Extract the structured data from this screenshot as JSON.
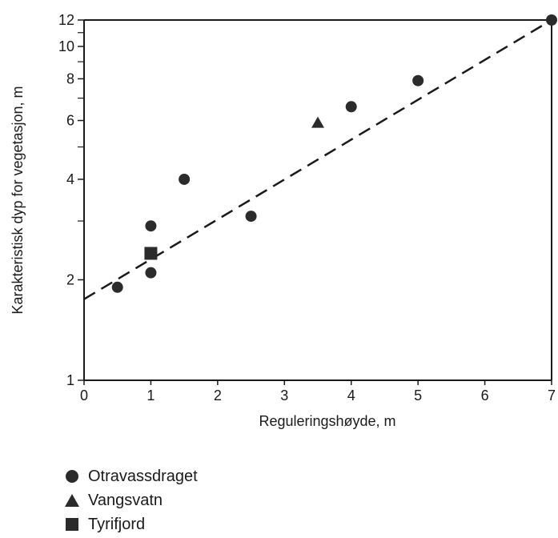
{
  "chart_data": {
    "type": "scatter",
    "title": "",
    "xlabel": "Reguleringshøyde, m",
    "ylabel": "Karakteristisk dyp for vegetasjon, m",
    "xlim": [
      0,
      7
    ],
    "ylim": [
      1,
      12
    ],
    "yscale": "log",
    "xticks": [
      0,
      1,
      2,
      3,
      4,
      5,
      6,
      7
    ],
    "yticks": [
      1,
      2,
      4,
      6,
      8,
      10,
      12
    ],
    "yminor_ticks": [
      3,
      5,
      7,
      9,
      11
    ],
    "grid": false,
    "legend_position": "bottom-left",
    "series": [
      {
        "name": "Otravassdraget",
        "marker": "circle",
        "color": "#2b2b2b",
        "points": [
          [
            0.5,
            1.9
          ],
          [
            1.0,
            2.1
          ],
          [
            1.0,
            2.9
          ],
          [
            1.5,
            4.0
          ],
          [
            2.5,
            3.1
          ],
          [
            4.0,
            6.6
          ],
          [
            5.0,
            7.9
          ],
          [
            7.0,
            12.0
          ]
        ]
      },
      {
        "name": "Vangsvatn",
        "marker": "triangle",
        "color": "#2b2b2b",
        "points": [
          [
            3.5,
            5.9
          ]
        ]
      },
      {
        "name": "Tyrifjord",
        "marker": "square",
        "color": "#2b2b2b",
        "points": [
          [
            1.0,
            2.4
          ]
        ]
      }
    ],
    "trend_line": {
      "style": "dashed",
      "color": "#1a1a1a",
      "from": [
        0,
        1.75
      ],
      "to": [
        7,
        12.0
      ]
    }
  }
}
